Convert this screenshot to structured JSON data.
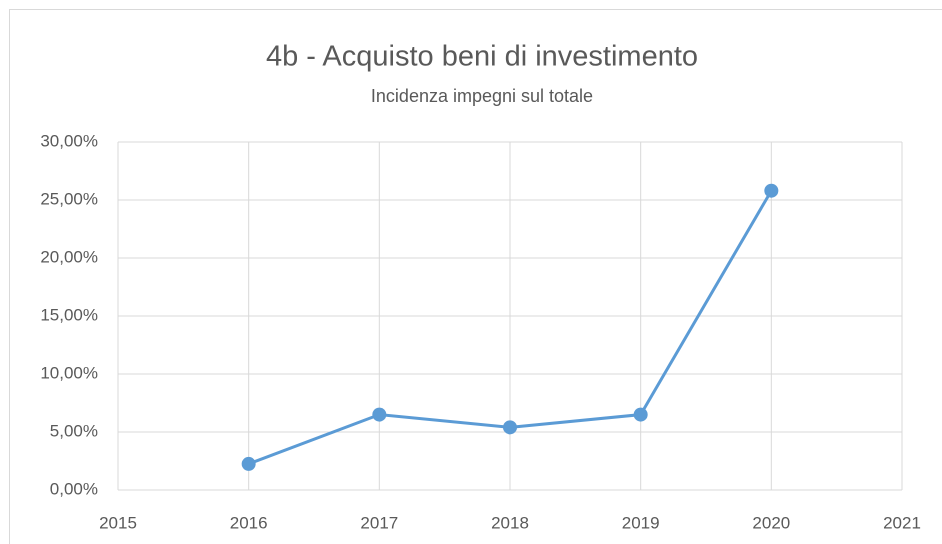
{
  "chart_data": {
    "type": "line",
    "title": "4b - Acquisto beni di investimento",
    "subtitle": "Incidenza impegni sul totale",
    "x": [
      2016,
      2017,
      2018,
      2019,
      2020
    ],
    "values": [
      2.25,
      6.5,
      5.4,
      6.5,
      25.8
    ],
    "color": "#5b9bd5",
    "xlim": [
      2015,
      2021
    ],
    "xticks": [
      2015,
      2016,
      2017,
      2018,
      2019,
      2020,
      2021
    ],
    "ylim": [
      0,
      30
    ],
    "yticks": [
      {
        "value": 0,
        "label": "0,00%"
      },
      {
        "value": 5,
        "label": "5,00%"
      },
      {
        "value": 10,
        "label": "10,00%"
      },
      {
        "value": 15,
        "label": "15,00%"
      },
      {
        "value": 20,
        "label": "20,00%"
      },
      {
        "value": 25,
        "label": "25,00%"
      },
      {
        "value": 30,
        "label": "30,00%"
      }
    ],
    "grid": true
  }
}
